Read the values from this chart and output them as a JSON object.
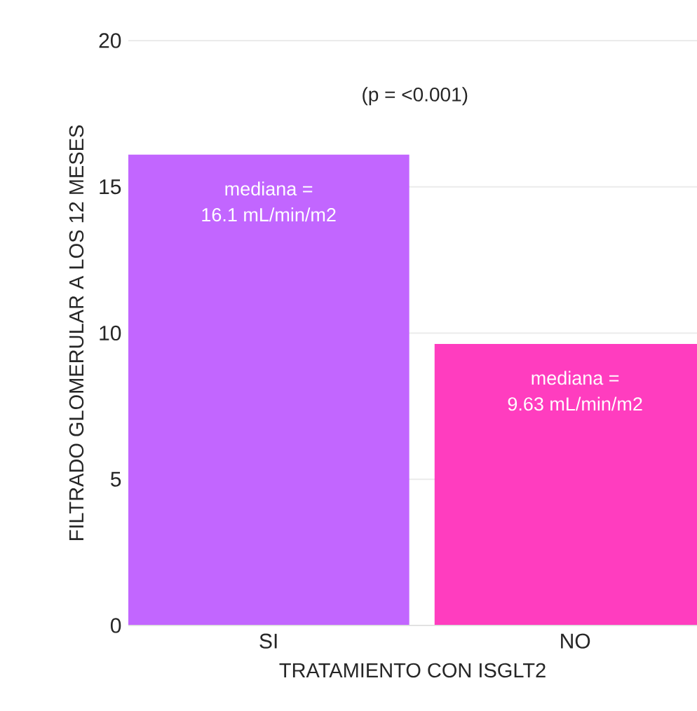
{
  "chart_data": {
    "type": "bar",
    "categories": [
      "SI",
      "NO"
    ],
    "values": [
      16.1,
      9.63
    ],
    "colors": [
      "#c266ff",
      "#ff3dbf"
    ],
    "xlabel": "TRATAMIENTO CON ISGLT2",
    "ylabel": "FILTRADO GLOMERULAR A LOS 12 MESES",
    "ylim": [
      0,
      20
    ],
    "yticks": [
      0,
      5,
      10,
      15,
      20
    ],
    "grid": "y",
    "annotations": [
      "(p = <0.001)",
      {
        "text": "mediana =",
        "x": "SI",
        "y": 16.1
      },
      {
        "text": "16.1 mL/min/m2",
        "x": "SI",
        "y": 16.1
      },
      {
        "text": "mediana =",
        "x": "NO",
        "y": 9.63
      },
      {
        "text": "9.63 mL/min/m2",
        "x": "NO",
        "y": 9.63
      }
    ]
  }
}
